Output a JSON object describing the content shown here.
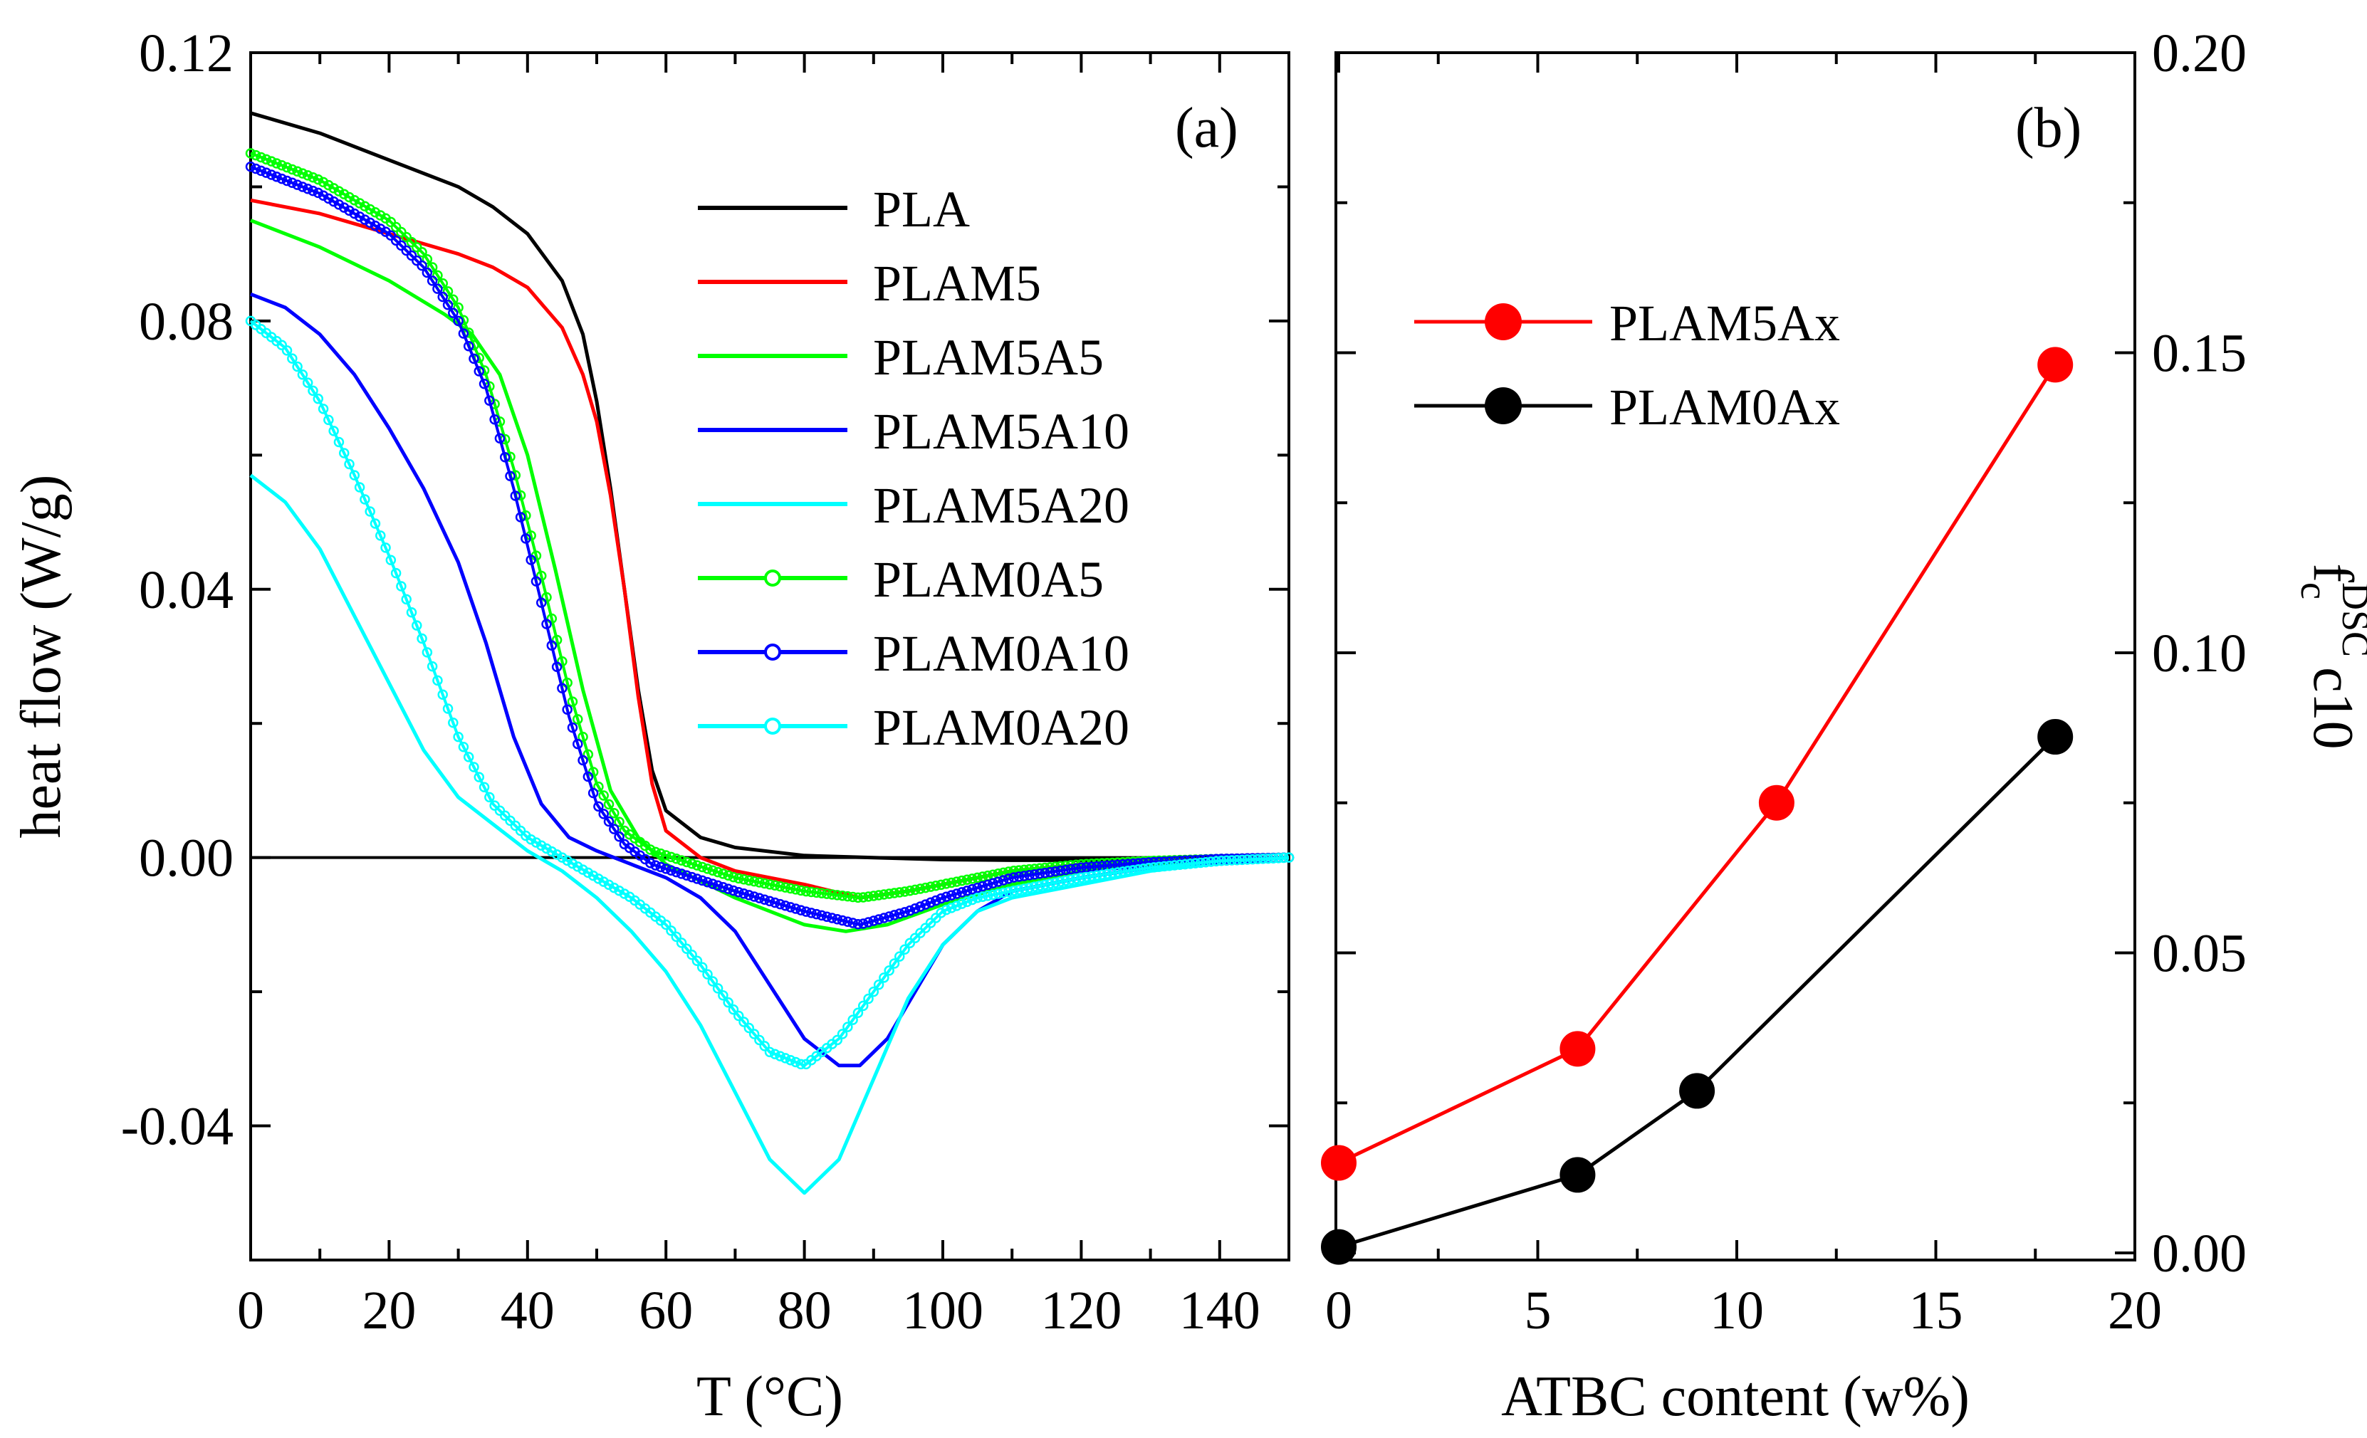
{
  "chart_data": [
    {
      "panel": "(a)",
      "type": "line",
      "xlabel": "T (°C)",
      "ylabel": "heat flow (W/g)",
      "xlim": [
        0,
        150
      ],
      "ylim": [
        -0.06,
        0.12
      ],
      "xticks": [
        "0",
        "20",
        "40",
        "60",
        "80",
        "100",
        "120",
        "140"
      ],
      "yticks": [
        "-0.04",
        "0.00",
        "0.04",
        "0.08",
        "0.12"
      ],
      "reference_line_y": 0,
      "legend_position": "top-right",
      "series": [
        {
          "name": "PLA",
          "color": "#000000",
          "marker": "none",
          "points": [
            [
              0,
              0.111
            ],
            [
              10,
              0.108
            ],
            [
              20,
              0.104
            ],
            [
              30,
              0.1
            ],
            [
              35,
              0.097
            ],
            [
              40,
              0.093
            ],
            [
              45,
              0.086
            ],
            [
              48,
              0.078
            ],
            [
              50,
              0.068
            ],
            [
              52,
              0.055
            ],
            [
              54,
              0.04
            ],
            [
              56,
              0.025
            ],
            [
              58,
              0.013
            ],
            [
              60,
              0.007
            ],
            [
              65,
              0.003
            ],
            [
              70,
              0.0015
            ],
            [
              80,
              0.0003
            ],
            [
              90,
              0.0
            ],
            [
              100,
              -0.0003
            ],
            [
              110,
              -0.0004
            ],
            [
              120,
              -0.0004
            ],
            [
              130,
              -0.0003
            ],
            [
              140,
              -0.0001
            ],
            [
              150,
              0.0
            ]
          ]
        },
        {
          "name": "PLAM5",
          "color": "#ff0000",
          "marker": "none",
          "points": [
            [
              0,
              0.098
            ],
            [
              10,
              0.096
            ],
            [
              20,
              0.093
            ],
            [
              30,
              0.09
            ],
            [
              35,
              0.088
            ],
            [
              40,
              0.085
            ],
            [
              45,
              0.079
            ],
            [
              48,
              0.072
            ],
            [
              50,
              0.065
            ],
            [
              52,
              0.054
            ],
            [
              54,
              0.04
            ],
            [
              56,
              0.024
            ],
            [
              58,
              0.011
            ],
            [
              60,
              0.004
            ],
            [
              65,
              0.0
            ],
            [
              70,
              -0.002
            ],
            [
              80,
              -0.004
            ],
            [
              88,
              -0.006
            ],
            [
              95,
              -0.005
            ],
            [
              100,
              -0.004
            ],
            [
              110,
              -0.002
            ],
            [
              120,
              -0.001
            ],
            [
              130,
              -0.0005
            ],
            [
              140,
              -0.0002
            ],
            [
              150,
              0.0
            ]
          ]
        },
        {
          "name": "PLAM5A5",
          "color": "#00ff00",
          "marker": "none",
          "points": [
            [
              0,
              0.095
            ],
            [
              10,
              0.091
            ],
            [
              20,
              0.086
            ],
            [
              28,
              0.081
            ],
            [
              32,
              0.078
            ],
            [
              36,
              0.072
            ],
            [
              40,
              0.06
            ],
            [
              44,
              0.043
            ],
            [
              48,
              0.025
            ],
            [
              52,
              0.01
            ],
            [
              56,
              0.003
            ],
            [
              60,
              -0.001
            ],
            [
              70,
              -0.006
            ],
            [
              80,
              -0.01
            ],
            [
              86,
              -0.011
            ],
            [
              92,
              -0.01
            ],
            [
              100,
              -0.007
            ],
            [
              110,
              -0.004
            ],
            [
              120,
              -0.002
            ],
            [
              130,
              -0.001
            ],
            [
              140,
              -0.0004
            ],
            [
              150,
              0.0
            ]
          ]
        },
        {
          "name": "PLAM5A10",
          "color": "#0000ff",
          "marker": "none",
          "points": [
            [
              0,
              0.084
            ],
            [
              5,
              0.082
            ],
            [
              10,
              0.078
            ],
            [
              15,
              0.072
            ],
            [
              20,
              0.064
            ],
            [
              25,
              0.055
            ],
            [
              30,
              0.044
            ],
            [
              34,
              0.032
            ],
            [
              38,
              0.018
            ],
            [
              42,
              0.008
            ],
            [
              46,
              0.003
            ],
            [
              50,
              0.001
            ],
            [
              55,
              -0.001
            ],
            [
              60,
              -0.003
            ],
            [
              65,
              -0.006
            ],
            [
              70,
              -0.011
            ],
            [
              75,
              -0.019
            ],
            [
              80,
              -0.027
            ],
            [
              85,
              -0.031
            ],
            [
              88,
              -0.031
            ],
            [
              92,
              -0.027
            ],
            [
              96,
              -0.02
            ],
            [
              100,
              -0.013
            ],
            [
              105,
              -0.008
            ],
            [
              110,
              -0.005
            ],
            [
              120,
              -0.003
            ],
            [
              130,
              -0.0015
            ],
            [
              140,
              -0.0005
            ],
            [
              150,
              0.0
            ]
          ]
        },
        {
          "name": "PLAM5A20",
          "color": "#00ffff",
          "marker": "none",
          "points": [
            [
              0,
              0.057
            ],
            [
              5,
              0.053
            ],
            [
              10,
              0.046
            ],
            [
              15,
              0.036
            ],
            [
              20,
              0.026
            ],
            [
              25,
              0.016
            ],
            [
              30,
              0.009
            ],
            [
              35,
              0.005
            ],
            [
              40,
              0.001
            ],
            [
              45,
              -0.002
            ],
            [
              50,
              -0.006
            ],
            [
              55,
              -0.011
            ],
            [
              60,
              -0.017
            ],
            [
              65,
              -0.025
            ],
            [
              70,
              -0.035
            ],
            [
              75,
              -0.045
            ],
            [
              80,
              -0.05
            ],
            [
              85,
              -0.045
            ],
            [
              90,
              -0.033
            ],
            [
              95,
              -0.021
            ],
            [
              100,
              -0.013
            ],
            [
              105,
              -0.008
            ],
            [
              110,
              -0.006
            ],
            [
              120,
              -0.004
            ],
            [
              130,
              -0.002
            ],
            [
              140,
              -0.0008
            ],
            [
              150,
              0.0
            ]
          ]
        },
        {
          "name": "PLAM0A5",
          "color": "#00ff00",
          "marker": "circle",
          "points": [
            [
              0,
              0.105
            ],
            [
              10,
              0.101
            ],
            [
              20,
              0.095
            ],
            [
              25,
              0.09
            ],
            [
              30,
              0.082
            ],
            [
              34,
              0.072
            ],
            [
              38,
              0.058
            ],
            [
              42,
              0.042
            ],
            [
              46,
              0.025
            ],
            [
              50,
              0.011
            ],
            [
              54,
              0.004
            ],
            [
              58,
              0.001
            ],
            [
              64,
              -0.001
            ],
            [
              70,
              -0.003
            ],
            [
              80,
              -0.005
            ],
            [
              88,
              -0.006
            ],
            [
              95,
              -0.005
            ],
            [
              100,
              -0.004
            ],
            [
              110,
              -0.002
            ],
            [
              120,
              -0.001
            ],
            [
              130,
              -0.0005
            ],
            [
              140,
              -0.0002
            ],
            [
              150,
              0.0
            ]
          ]
        },
        {
          "name": "PLAM0A10",
          "color": "#0000ff",
          "marker": "circle",
          "points": [
            [
              0,
              0.103
            ],
            [
              10,
              0.099
            ],
            [
              20,
              0.093
            ],
            [
              25,
              0.088
            ],
            [
              30,
              0.08
            ],
            [
              34,
              0.07
            ],
            [
              38,
              0.055
            ],
            [
              42,
              0.038
            ],
            [
              46,
              0.021
            ],
            [
              50,
              0.008
            ],
            [
              54,
              0.002
            ],
            [
              58,
              -0.001
            ],
            [
              64,
              -0.003
            ],
            [
              70,
              -0.005
            ],
            [
              80,
              -0.008
            ],
            [
              88,
              -0.01
            ],
            [
              95,
              -0.008
            ],
            [
              100,
              -0.006
            ],
            [
              110,
              -0.003
            ],
            [
              120,
              -0.0015
            ],
            [
              130,
              -0.0007
            ],
            [
              140,
              -0.0002
            ],
            [
              150,
              0.0
            ]
          ]
        },
        {
          "name": "PLAM0A20",
          "color": "#00ffff",
          "marker": "circle",
          "points": [
            [
              0,
              0.08
            ],
            [
              5,
              0.076
            ],
            [
              10,
              0.068
            ],
            [
              15,
              0.057
            ],
            [
              20,
              0.045
            ],
            [
              25,
              0.032
            ],
            [
              30,
              0.018
            ],
            [
              35,
              0.008
            ],
            [
              40,
              0.003
            ],
            [
              45,
              0.0
            ],
            [
              50,
              -0.003
            ],
            [
              55,
              -0.006
            ],
            [
              60,
              -0.01
            ],
            [
              65,
              -0.016
            ],
            [
              70,
              -0.023
            ],
            [
              75,
              -0.029
            ],
            [
              80,
              -0.031
            ],
            [
              85,
              -0.027
            ],
            [
              90,
              -0.02
            ],
            [
              95,
              -0.013
            ],
            [
              100,
              -0.008
            ],
            [
              105,
              -0.006
            ],
            [
              110,
              -0.005
            ],
            [
              120,
              -0.003
            ],
            [
              130,
              -0.0015
            ],
            [
              140,
              -0.0005
            ],
            [
              150,
              0.0
            ]
          ]
        }
      ]
    },
    {
      "panel": "(b)",
      "type": "line",
      "xlabel": "ATBC content (w%)",
      "ylabel_main": "f",
      "ylabel_sub": "c",
      "ylabel_sup": "DSC",
      "ylabel_tail": "c10",
      "xlim": [
        0,
        20
      ],
      "ylim": [
        0,
        0.2
      ],
      "xticks": [
        "0",
        "5",
        "10",
        "15",
        "20"
      ],
      "yticks": [
        "0.00",
        "0.05",
        "0.10",
        "0.15",
        "0.20"
      ],
      "legend_position": "upper-left",
      "series": [
        {
          "name": "PLAM5Ax",
          "color": "#ff0000",
          "x": [
            0,
            6,
            11,
            18
          ],
          "values": [
            0.015,
            0.034,
            0.075,
            0.148
          ]
        },
        {
          "name": "PLAM0Ax",
          "color": "#000000",
          "x": [
            0,
            6,
            9,
            18
          ],
          "values": [
            0.001,
            0.013,
            0.027,
            0.086
          ]
        }
      ]
    }
  ]
}
